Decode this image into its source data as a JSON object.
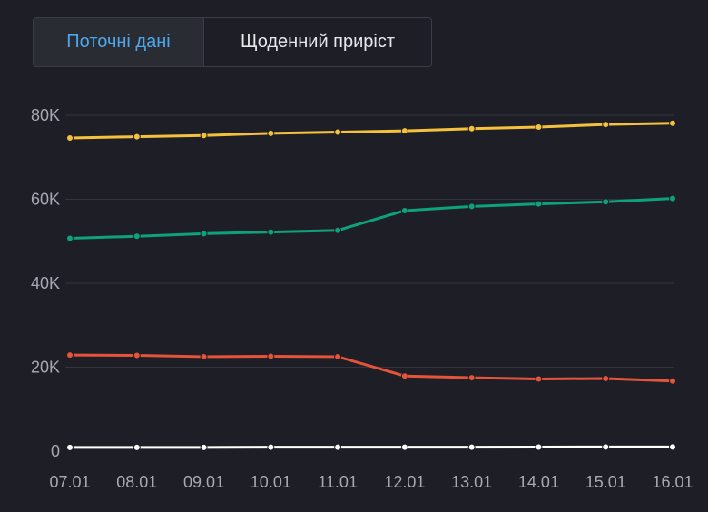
{
  "tabs": {
    "current_label": "Поточні дані",
    "daily_label": "Щоденний приріст"
  },
  "colors": {
    "background": "#1e1f26",
    "grid": "#33353e",
    "tick_text": "#a7a9b2",
    "active_tab_text": "#4ea6ea"
  },
  "chart_data": {
    "type": "line",
    "categories": [
      "07.01",
      "08.01",
      "09.01",
      "10.01",
      "11.01",
      "12.01",
      "13.01",
      "14.01",
      "15.01",
      "16.01"
    ],
    "ylim": [
      0,
      80000
    ],
    "yticks": [
      {
        "value": 0,
        "label": "0"
      },
      {
        "value": 20000,
        "label": "20K"
      },
      {
        "value": 40000,
        "label": "40K"
      },
      {
        "value": 60000,
        "label": "60K"
      },
      {
        "value": 80000,
        "label": "80K"
      }
    ],
    "grid": true,
    "series": [
      {
        "color": "#f5c13d",
        "values": [
          74600,
          74900,
          75200,
          75700,
          76000,
          76300,
          76800,
          77200,
          77800,
          78100
        ]
      },
      {
        "color": "#0ea27a",
        "values": [
          50700,
          51200,
          51800,
          52200,
          52600,
          57300,
          58300,
          58900,
          59400,
          60200
        ]
      },
      {
        "color": "#e5543a",
        "values": [
          22900,
          22800,
          22500,
          22600,
          22500,
          17900,
          17500,
          17200,
          17300,
          16700
        ]
      },
      {
        "color": "#ffffff",
        "values": [
          900,
          900,
          900,
          950,
          950,
          950,
          950,
          980,
          1000,
          1000
        ]
      }
    ]
  }
}
